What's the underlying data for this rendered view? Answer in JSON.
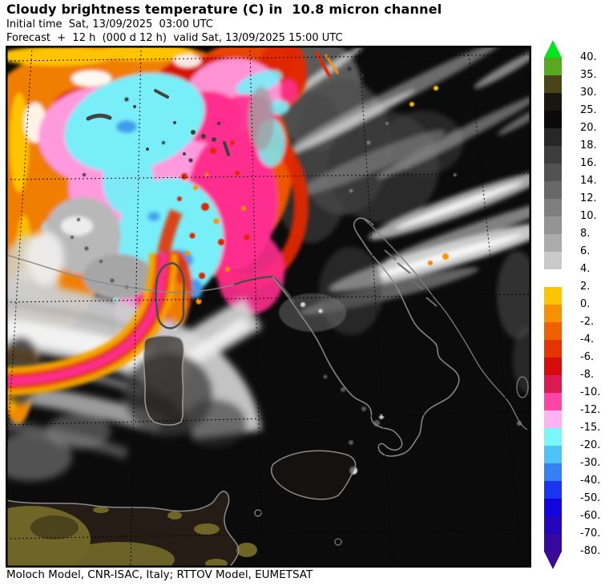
{
  "header": {
    "title": "Cloudy brightness temperature (C) in  10.8 micron channel",
    "init_line": "Initial time  Sat, 13/09/2025  03:00 UTC",
    "forecast_line": "Forecast  +  12 h  (000 d 12 h)  valid Sat, 13/09/2025 15:00 UTC"
  },
  "footer": {
    "credit": "Moloch Model, CNR-ISAC, Italy; RTTOV Model, EUMETSAT"
  },
  "chart_data": {
    "type": "heatmap",
    "title": "Cloudy brightness temperature (C) in  10.8 micron channel",
    "variable": "Cloudy brightness temperature",
    "units": "C",
    "channel": "10.8 micron",
    "init_time": "Sat, 13/09/2025 03:00 UTC",
    "forecast_lead": "+ 12 h (000 d 12 h)",
    "valid_time": "Sat, 13/09/2025 15:00 UTC",
    "source": "Moloch Model, CNR-ISAC, Italy; RTTOV Model, EUMETSAT",
    "region": "Central Mediterranean / Italy",
    "grid": "dashed latitude-longitude graticule",
    "colorbar": {
      "orientation": "vertical",
      "tick_labels": [
        "40.",
        "35.",
        "30.",
        "25.",
        "20.",
        "18.",
        "16.",
        "14.",
        "12.",
        "10.",
        "8.",
        "6.",
        "4.",
        "2.",
        "0.",
        "-2.",
        "-4.",
        "-6.",
        "-8.",
        "-10.",
        "-12.",
        "-15.",
        "-20.",
        "-30.",
        "-40.",
        "-50.",
        "-60.",
        "-70.",
        "-80."
      ],
      "segment_colors": [
        "#58a822",
        "#4a4518",
        "#17170f",
        "#0a0a0a",
        "#272727",
        "#3c3c3c",
        "#525252",
        "#686868",
        "#7e7e7e",
        "#949494",
        "#ababab",
        "#c9c9c9",
        "#ffffff",
        "#ffc400",
        "#f79100",
        "#ef6000",
        "#e63400",
        "#d60c0c",
        "#db1a52",
        "#ff45a5",
        "#ffb3f2",
        "#7bf6fa",
        "#4fc3f7",
        "#3381f5",
        "#1a35f0",
        "#1204dd",
        "#2306bb",
        "#3708a0"
      ],
      "over_arrow_color": "#00e51c",
      "under_arrow_color": "#3b0b91"
    }
  }
}
